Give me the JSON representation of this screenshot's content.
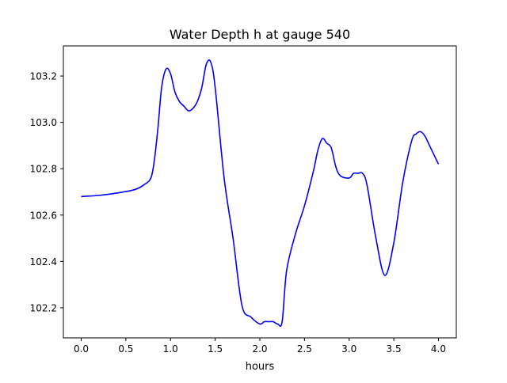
{
  "chart_data": {
    "type": "line",
    "title": "Water Depth h at gauge 540",
    "xlabel": "hours",
    "ylabel": "",
    "xlim": [
      -0.2,
      4.2
    ],
    "ylim": [
      102.07,
      103.33
    ],
    "xticks": [
      0.0,
      0.5,
      1.0,
      1.5,
      2.0,
      2.5,
      3.0,
      3.5,
      4.0
    ],
    "xtick_labels": [
      "0.0",
      "0.5",
      "1.0",
      "1.5",
      "2.0",
      "2.5",
      "3.0",
      "3.5",
      "4.0"
    ],
    "yticks": [
      102.2,
      102.4,
      102.6,
      102.8,
      103.0,
      103.2
    ],
    "ytick_labels": [
      "102.2",
      "102.4",
      "102.6",
      "102.8",
      "103.0",
      "103.2"
    ],
    "grid": false,
    "legend": "none",
    "series": [
      {
        "color": "#0000ff",
        "x": [
          0.0,
          0.2,
          0.4,
          0.6,
          0.7,
          0.78,
          0.82,
          0.86,
          0.9,
          0.95,
          1.0,
          1.05,
          1.1,
          1.15,
          1.2,
          1.25,
          1.3,
          1.35,
          1.4,
          1.45,
          1.5,
          1.6,
          1.7,
          1.8,
          1.9,
          2.0,
          2.05,
          2.1,
          2.15,
          2.2,
          2.25,
          2.3,
          2.4,
          2.5,
          2.6,
          2.65,
          2.7,
          2.75,
          2.8,
          2.85,
          2.9,
          3.0,
          3.05,
          3.1,
          3.15,
          3.2,
          3.3,
          3.4,
          3.5,
          3.6,
          3.7,
          3.75,
          3.8,
          3.85,
          3.9,
          4.0
        ],
        "y": [
          102.68,
          102.685,
          102.695,
          102.71,
          102.73,
          102.76,
          102.84,
          102.98,
          103.15,
          103.23,
          103.21,
          103.13,
          103.09,
          103.07,
          103.05,
          103.06,
          103.09,
          103.15,
          103.25,
          103.26,
          103.15,
          102.76,
          102.5,
          102.21,
          102.16,
          102.13,
          102.14,
          102.14,
          102.14,
          102.13,
          102.14,
          102.36,
          102.52,
          102.64,
          102.79,
          102.88,
          102.93,
          102.91,
          102.89,
          102.81,
          102.77,
          102.76,
          102.78,
          102.78,
          102.78,
          102.73,
          102.5,
          102.34,
          102.48,
          102.74,
          102.92,
          102.95,
          102.96,
          102.94,
          102.9,
          102.82
        ]
      }
    ]
  }
}
